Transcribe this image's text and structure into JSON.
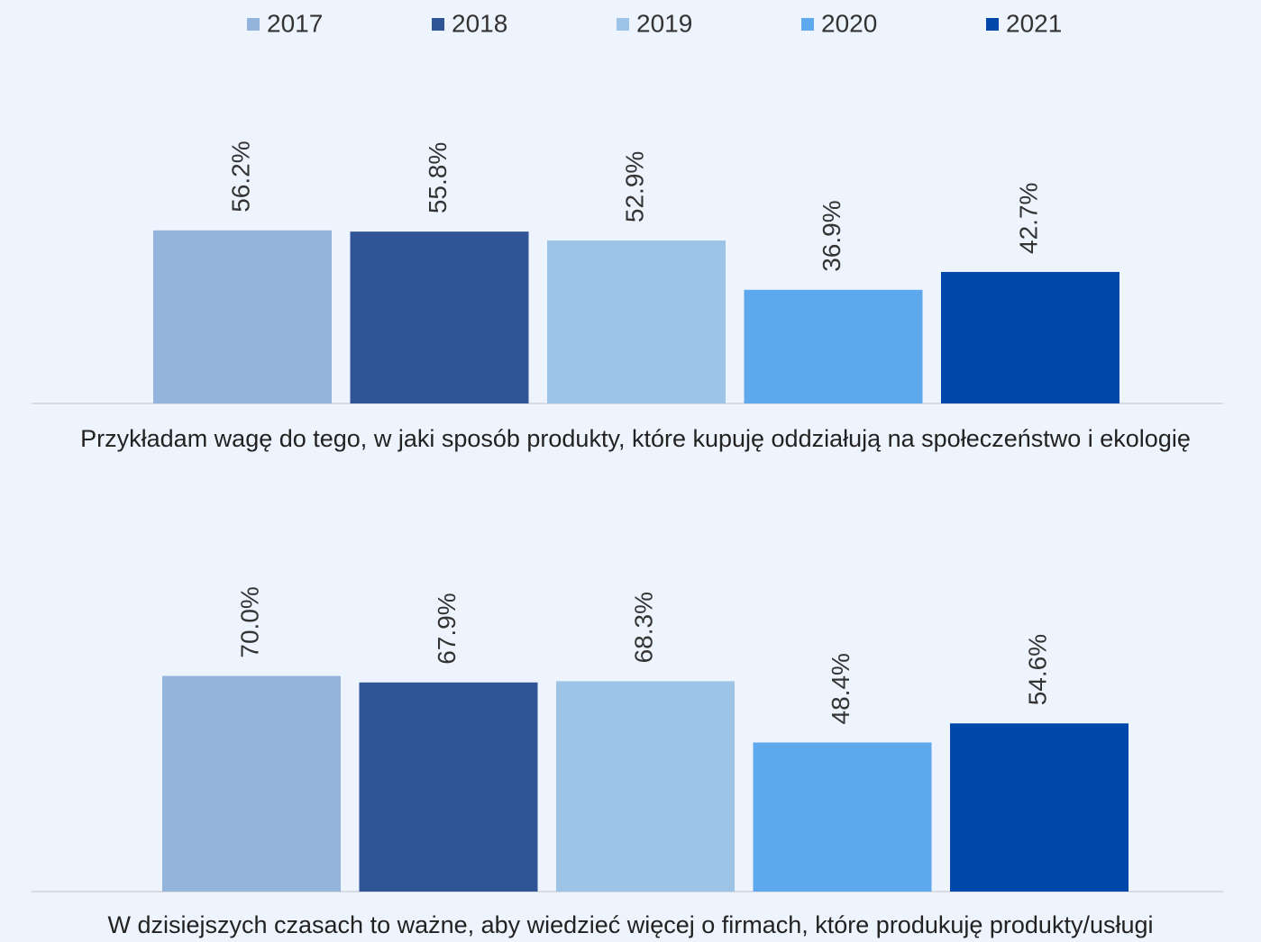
{
  "chart_data": {
    "type": "bar",
    "categories": [
      "Przykładam wagę do tego, w jaki sposób produkty, które kupuję oddziałują na społeczeństwo i ekologię",
      "W dzisiejszych czasach to ważne, aby wiedzieć więcej o firmach, które produkuję produkty/usługi"
    ],
    "series": [
      {
        "name": "2017",
        "color": "#94b4dc",
        "values": [
          56.2,
          70.0
        ],
        "value_labels": [
          "56.2%",
          "70.0%"
        ]
      },
      {
        "name": "2018",
        "color": "#2f5597",
        "values": [
          55.8,
          67.9
        ],
        "value_labels": [
          "55.8%",
          "67.9%"
        ]
      },
      {
        "name": "2019",
        "color": "#9dc3e6",
        "values": [
          52.9,
          68.3
        ],
        "value_labels": [
          "52.9%",
          "68.3%"
        ]
      },
      {
        "name": "2020",
        "color": "#5ea9ed",
        "values": [
          36.9,
          48.4
        ],
        "value_labels": [
          "36.9%",
          "48.4%"
        ]
      },
      {
        "name": "2021",
        "color": "#0047ab",
        "values": [
          42.7,
          54.6
        ],
        "value_labels": [
          "42.7%",
          "54.6%"
        ]
      }
    ],
    "legend": "top"
  }
}
